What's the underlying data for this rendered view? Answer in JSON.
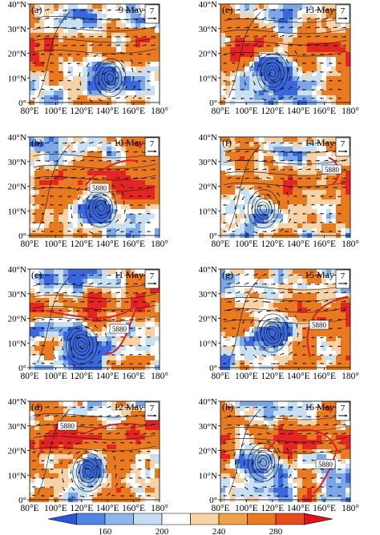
{
  "panels": [
    {
      "letter": "(a)",
      "date": "9 May",
      "contour_label": ""
    },
    {
      "letter": "(e)",
      "date": "13 May",
      "contour_label": ""
    },
    {
      "letter": "(b)",
      "date": "10 May",
      "contour_label": "5880"
    },
    {
      "letter": "(f)",
      "date": "14 May",
      "contour_label": "5880"
    },
    {
      "letter": "(c)",
      "date": "11 May",
      "contour_label": "5880"
    },
    {
      "letter": "(g)",
      "date": "15 May",
      "contour_label": "5880"
    },
    {
      "letter": "(d)",
      "date": "12 May",
      "contour_label": "5880"
    },
    {
      "letter": "(h)",
      "date": "16 May",
      "contour_label": "5880"
    }
  ],
  "x_ticks": [
    "80°E",
    "100°E",
    "120°E",
    "140°E",
    "160°E",
    "180°"
  ],
  "y_ticks": [
    "40°N",
    "30°N",
    "20°N",
    "10°N",
    "0°"
  ],
  "reference_vector": "7",
  "colorbar": {
    "ticks": [
      "160",
      "200",
      "240",
      "280"
    ],
    "colors": [
      "#2a55d8",
      "#4f86e6",
      "#8cb6ec",
      "#c4ddf2",
      "#ffffff",
      "#f7d3a5",
      "#f0a24a",
      "#ea7a20",
      "#e84a1a",
      "#e0121a"
    ]
  },
  "field_colors": {
    "deep_blue": "#3b67dd",
    "mid_blue": "#7ba6e8",
    "light_blue": "#c9dff2",
    "white": "#ffffff",
    "light_orange": "#f6d2a6",
    "orange": "#ea7a20",
    "red": "#e52424",
    "contour": "#d8202a"
  }
}
